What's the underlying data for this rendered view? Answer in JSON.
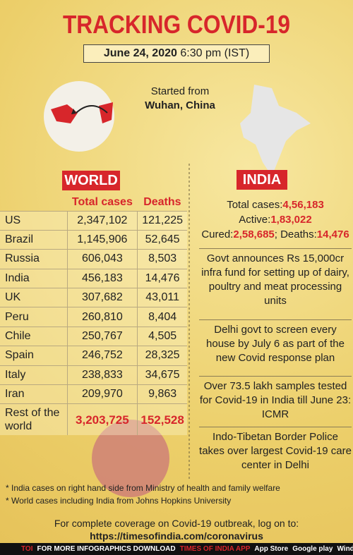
{
  "header": {
    "title": "TRACKING COVID-19",
    "date": "June 24, 2020",
    "time": "6:30 pm (IST)"
  },
  "origin": {
    "label": "Started from",
    "place": "Wuhan, China"
  },
  "world": {
    "heading": "WORLD",
    "columns": [
      "Total cases",
      "Deaths"
    ],
    "rows": [
      [
        "US",
        "2,347,102",
        "121,225"
      ],
      [
        "Brazil",
        "1,145,906",
        "52,645"
      ],
      [
        "Russia",
        "606,043",
        "8,503"
      ],
      [
        "India",
        "456,183",
        "14,476"
      ],
      [
        "UK",
        "307,682",
        "43,011"
      ],
      [
        "Peru",
        "260,810",
        "8,404"
      ],
      [
        "Chile",
        "250,767",
        "4,505"
      ],
      [
        "Spain",
        "246,752",
        "28,325"
      ],
      [
        "Italy",
        "238,833",
        "34,675"
      ],
      [
        "Iran",
        "209,970",
        "9,863"
      ]
    ],
    "rest": [
      "Rest of the world",
      "3,203,725",
      "152,528"
    ]
  },
  "india": {
    "heading": "INDIA",
    "stats": [
      {
        "label": "Total cases:",
        "value": "4,56,183"
      },
      {
        "label": "Active:",
        "value": "1,83,022"
      },
      {
        "label": "Cured:",
        "value": "2,58,685"
      },
      {
        "label": "; Deaths:",
        "value": "14,476"
      }
    ],
    "news": [
      "Govt announces Rs 15,000cr infra fund for setting up of dairy, poultry and meat processing units",
      "Delhi govt to screen every house by July 6 as part of the new Covid response plan",
      "Over 73.5 lakh samples tested for Covid-19 in India till June 23: ICMR",
      "Indo-Tibetan Border Police takes over largest Covid-19 care center in Delhi"
    ]
  },
  "footnotes": [
    "* India cases on right hand side from Ministry of health and family welfare",
    "* World cases including India from Johns Hopkins University"
  ],
  "footer": {
    "text": "For complete coverage on Covid-19 outbreak, log on to:",
    "url": "https://timesofindia.com/coronavirus"
  },
  "bar": {
    "logo": "TOI",
    "text": "FOR MORE  INFOGRAPHICS DOWNLOAD",
    "app": "TIMES OF INDIA  APP",
    "stores": [
      "App Store",
      "Google play",
      "Windows Phone"
    ]
  }
}
